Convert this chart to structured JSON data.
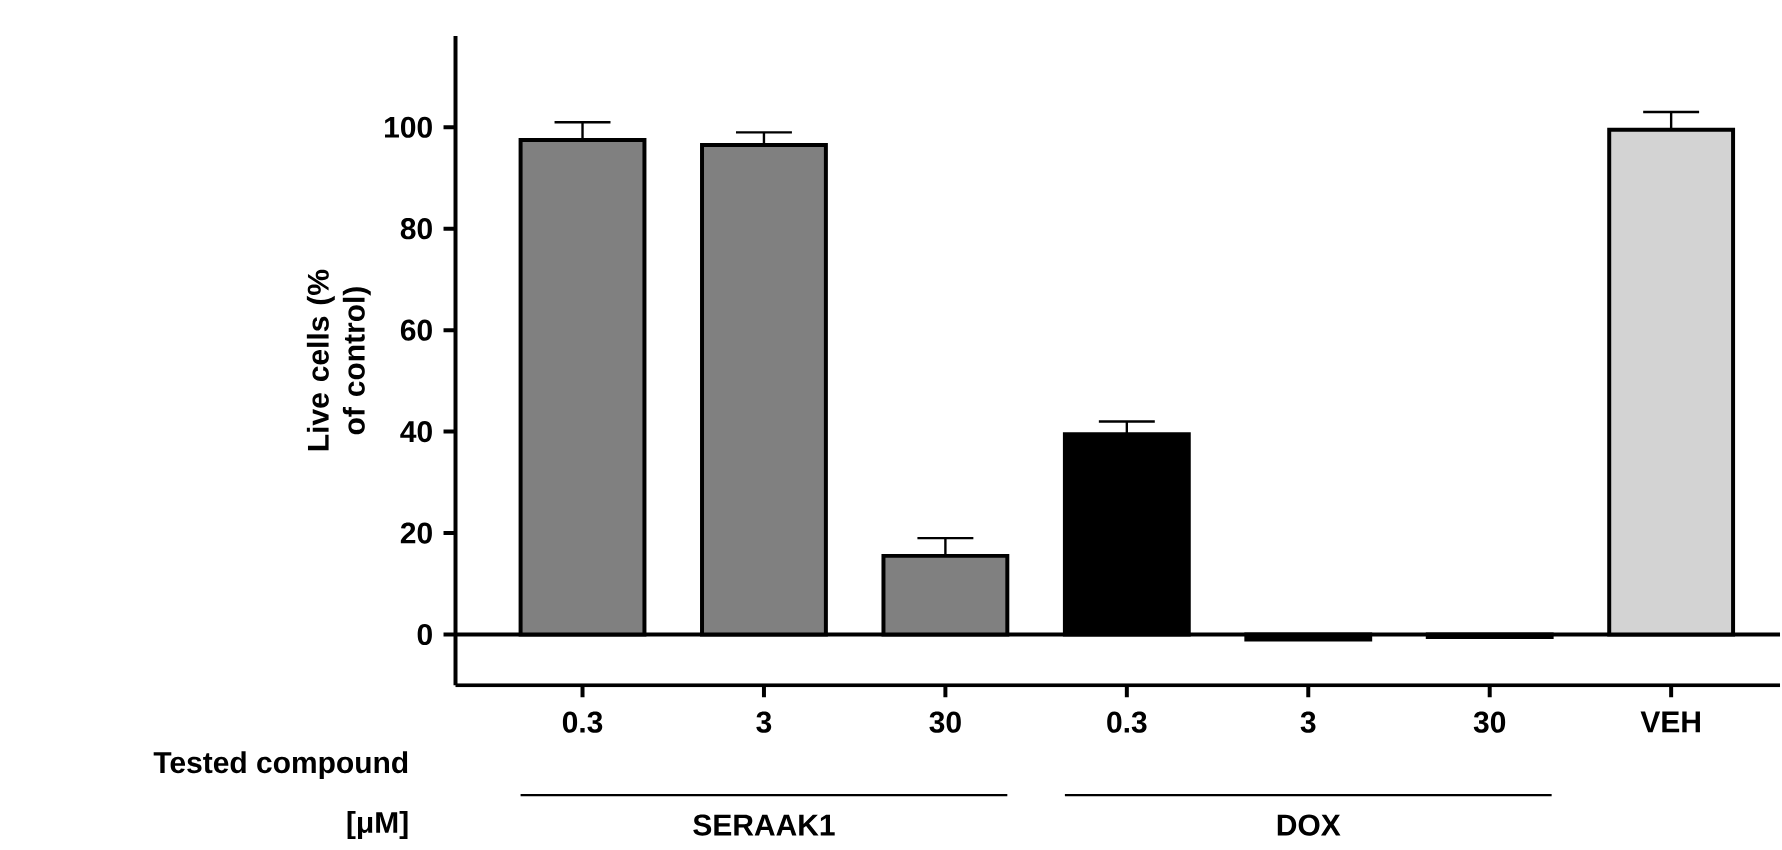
{
  "chart_data": {
    "type": "bar",
    "ylabel": "Live cells (% of control)",
    "categories": [
      "0.3",
      "3",
      "30",
      "0.3",
      "3",
      "30",
      "VEH"
    ],
    "values": [
      97.5,
      96.5,
      15.5,
      39.5,
      -1,
      -0.5,
      99.5
    ],
    "errors": [
      3.5,
      2.5,
      3.5,
      2.5,
      null,
      null,
      3.5
    ],
    "colors": [
      "#808080",
      "#808080",
      "#808080",
      "#000000",
      "#000000",
      "#000000",
      "#d3d3d3"
    ],
    "ylim": [
      -10,
      118
    ],
    "yticks": [
      0,
      20,
      40,
      60,
      80,
      100
    ],
    "ref_lines": [
      {
        "axis": "y",
        "value": 0
      }
    ],
    "grid": false,
    "annotations": [
      "Tested compound",
      "[μM]",
      "SERAAK1",
      "DOX"
    ]
  }
}
